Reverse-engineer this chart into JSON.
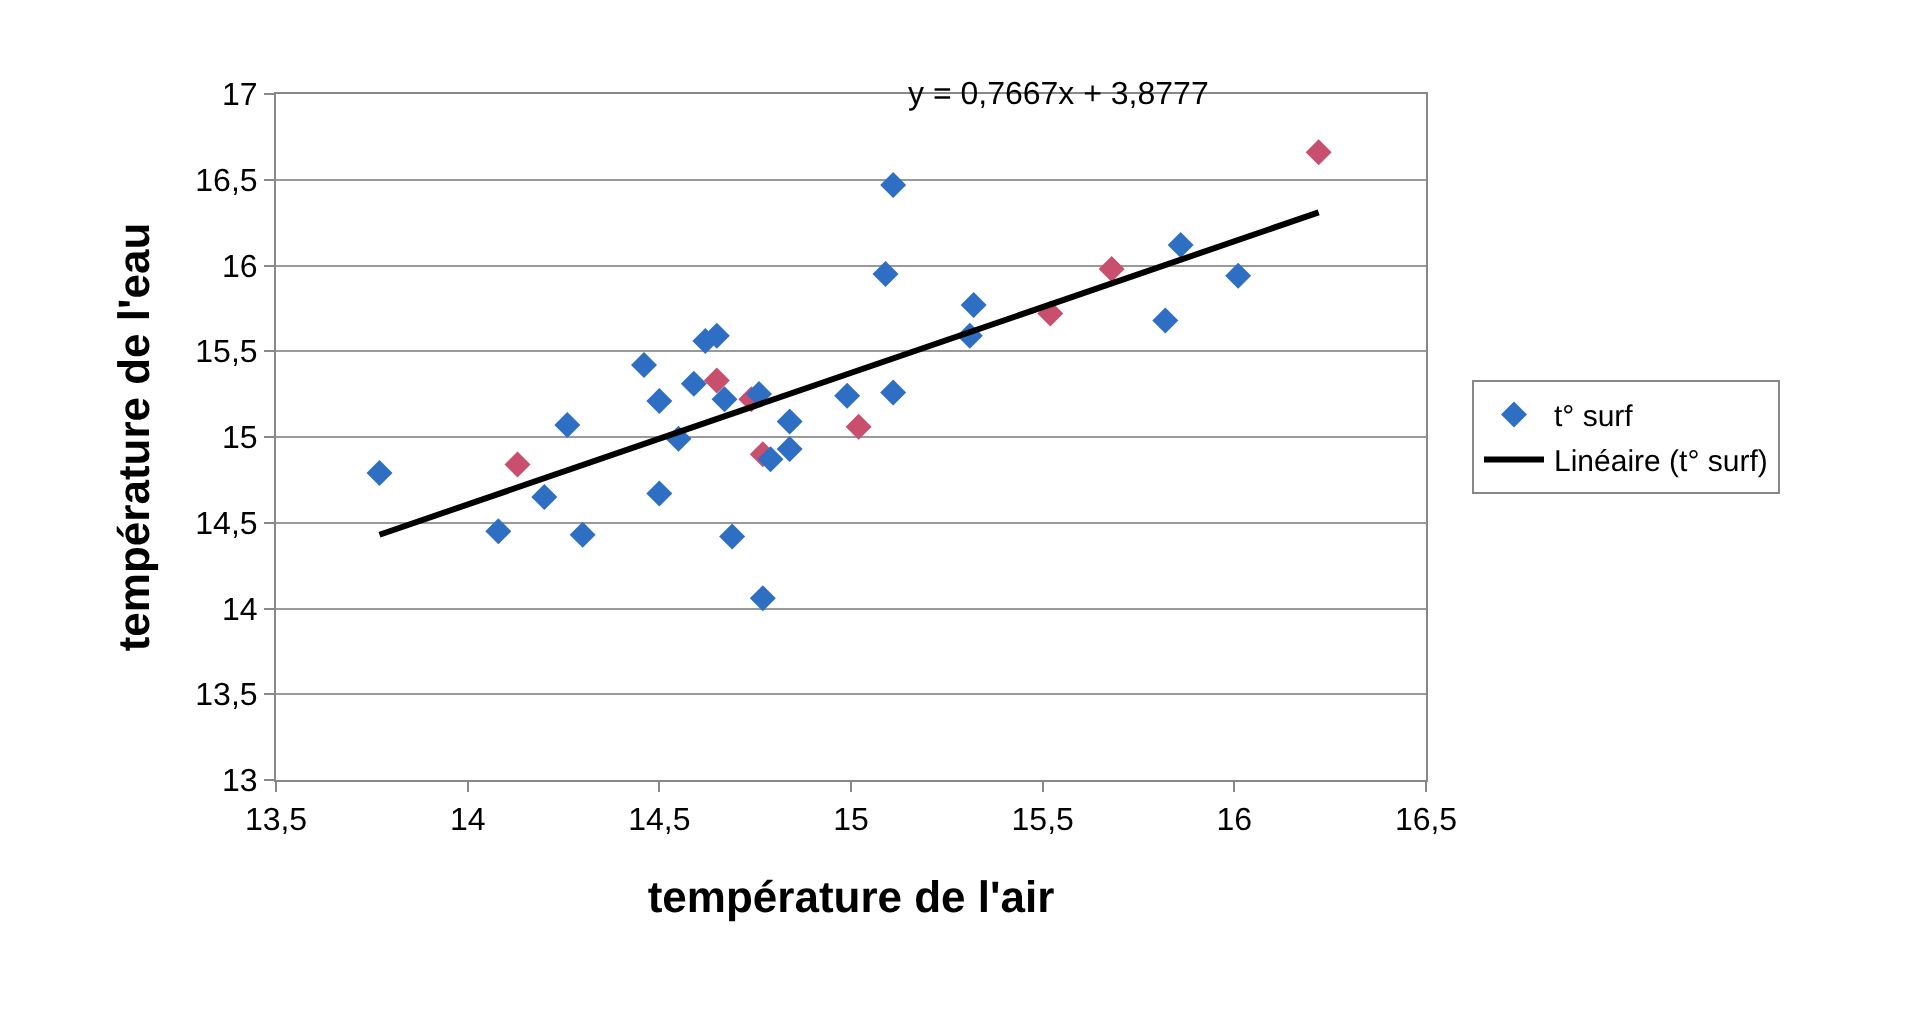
{
  "chart_data": {
    "type": "scatter",
    "xlabel": "température de l'air",
    "ylabel": "température de l'eau",
    "annotations": [
      "y = 0,7667x + 3,8777"
    ],
    "series": [
      {
        "name": "t° surf",
        "marker": "diamond",
        "color": "#2e6fc4",
        "x": [
          13.77,
          14.08,
          14.13,
          14.2,
          14.26,
          14.3,
          14.46,
          14.5,
          14.5,
          14.55,
          14.59,
          14.62,
          14.65,
          14.65,
          14.67,
          14.69,
          14.74,
          14.76,
          14.77,
          14.77,
          14.79,
          14.84,
          14.84,
          14.99,
          15.02,
          15.09,
          15.11,
          15.11,
          15.31,
          15.32,
          15.52,
          15.68,
          15.82,
          15.86,
          16.01,
          16.22
        ],
        "values": [
          14.79,
          14.45,
          14.84,
          14.65,
          15.07,
          14.43,
          15.42,
          15.21,
          14.67,
          14.99,
          15.31,
          15.56,
          15.59,
          15.33,
          15.22,
          14.42,
          15.22,
          15.25,
          14.9,
          14.06,
          14.87,
          15.09,
          14.93,
          15.24,
          15.06,
          15.95,
          16.47,
          15.26,
          15.59,
          15.77,
          15.72,
          15.98,
          15.68,
          16.12,
          15.94,
          16.66
        ],
        "colors": [
          null,
          null,
          "#c8506e",
          null,
          null,
          null,
          null,
          null,
          null,
          null,
          null,
          null,
          null,
          "#c8506e",
          null,
          null,
          "#c8506e",
          null,
          "#c8506e",
          null,
          null,
          null,
          null,
          null,
          "#c8506e",
          null,
          null,
          null,
          null,
          null,
          "#c8506e",
          "#c8506e",
          null,
          null,
          null,
          "#c8506e"
        ]
      },
      {
        "name": "Linéaire (t° surf)",
        "type": "line",
        "marker": "none",
        "line_style": "solid",
        "color": "#000000",
        "x": [
          13.77,
          16.22
        ],
        "values": [
          14.43,
          16.31
        ]
      }
    ],
    "xlim": [
      13.5,
      16.5
    ],
    "xticks": [
      {
        "value": 13.5,
        "label": "13,5"
      },
      14,
      {
        "value": 14.5,
        "label": "14,5"
      },
      15,
      {
        "value": 15.5,
        "label": "15,5"
      },
      16,
      {
        "value": 16.5,
        "label": "16,5"
      }
    ],
    "ylim": [
      13,
      17
    ],
    "yticks": [
      13,
      {
        "value": 13.5,
        "label": "13,5"
      },
      14,
      {
        "value": 14.5,
        "label": "14,5"
      },
      15,
      {
        "value": 15.5,
        "label": "15,5"
      },
      16,
      {
        "value": 16.5,
        "label": "16,5"
      },
      17
    ],
    "grid": "y",
    "legend": "right"
  }
}
